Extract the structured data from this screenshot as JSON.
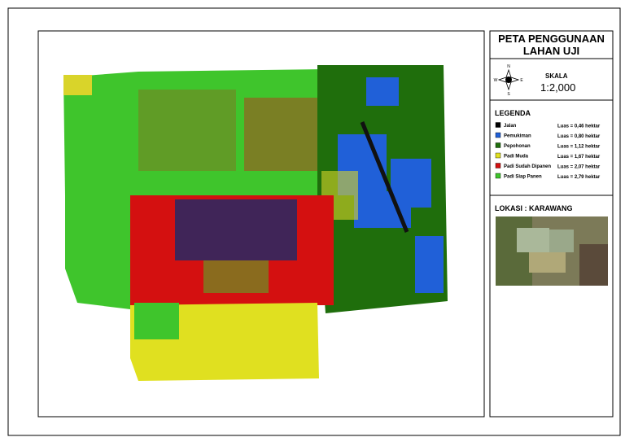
{
  "title": "PETA PENGGUNAAN LAHAN UJI",
  "compass": {
    "north": "N",
    "south": "S",
    "east": "E",
    "west": "W"
  },
  "scale": {
    "label": "SKALA",
    "value": "1:2,000"
  },
  "legend": {
    "title": "LEGENDA",
    "items": [
      {
        "name": "Jalan",
        "area": "Luas = 0,46 hektar"
      },
      {
        "name": "Pemukiman",
        "area": "Luas = 0,80 hektar"
      },
      {
        "name": "Pepohonan",
        "area": "Luas = 1,12 hektar"
      },
      {
        "name": "Padi Muda",
        "area": "Luas = 1,67 hektar"
      },
      {
        "name": "Padi Sudah Dipanen",
        "area": "Luas = 2,07 hektar"
      },
      {
        "name": "Padi Siap Panen",
        "area": "Luas = 2,79 hektar"
      }
    ]
  },
  "location": "LOKASI  :  KARAWANG"
}
